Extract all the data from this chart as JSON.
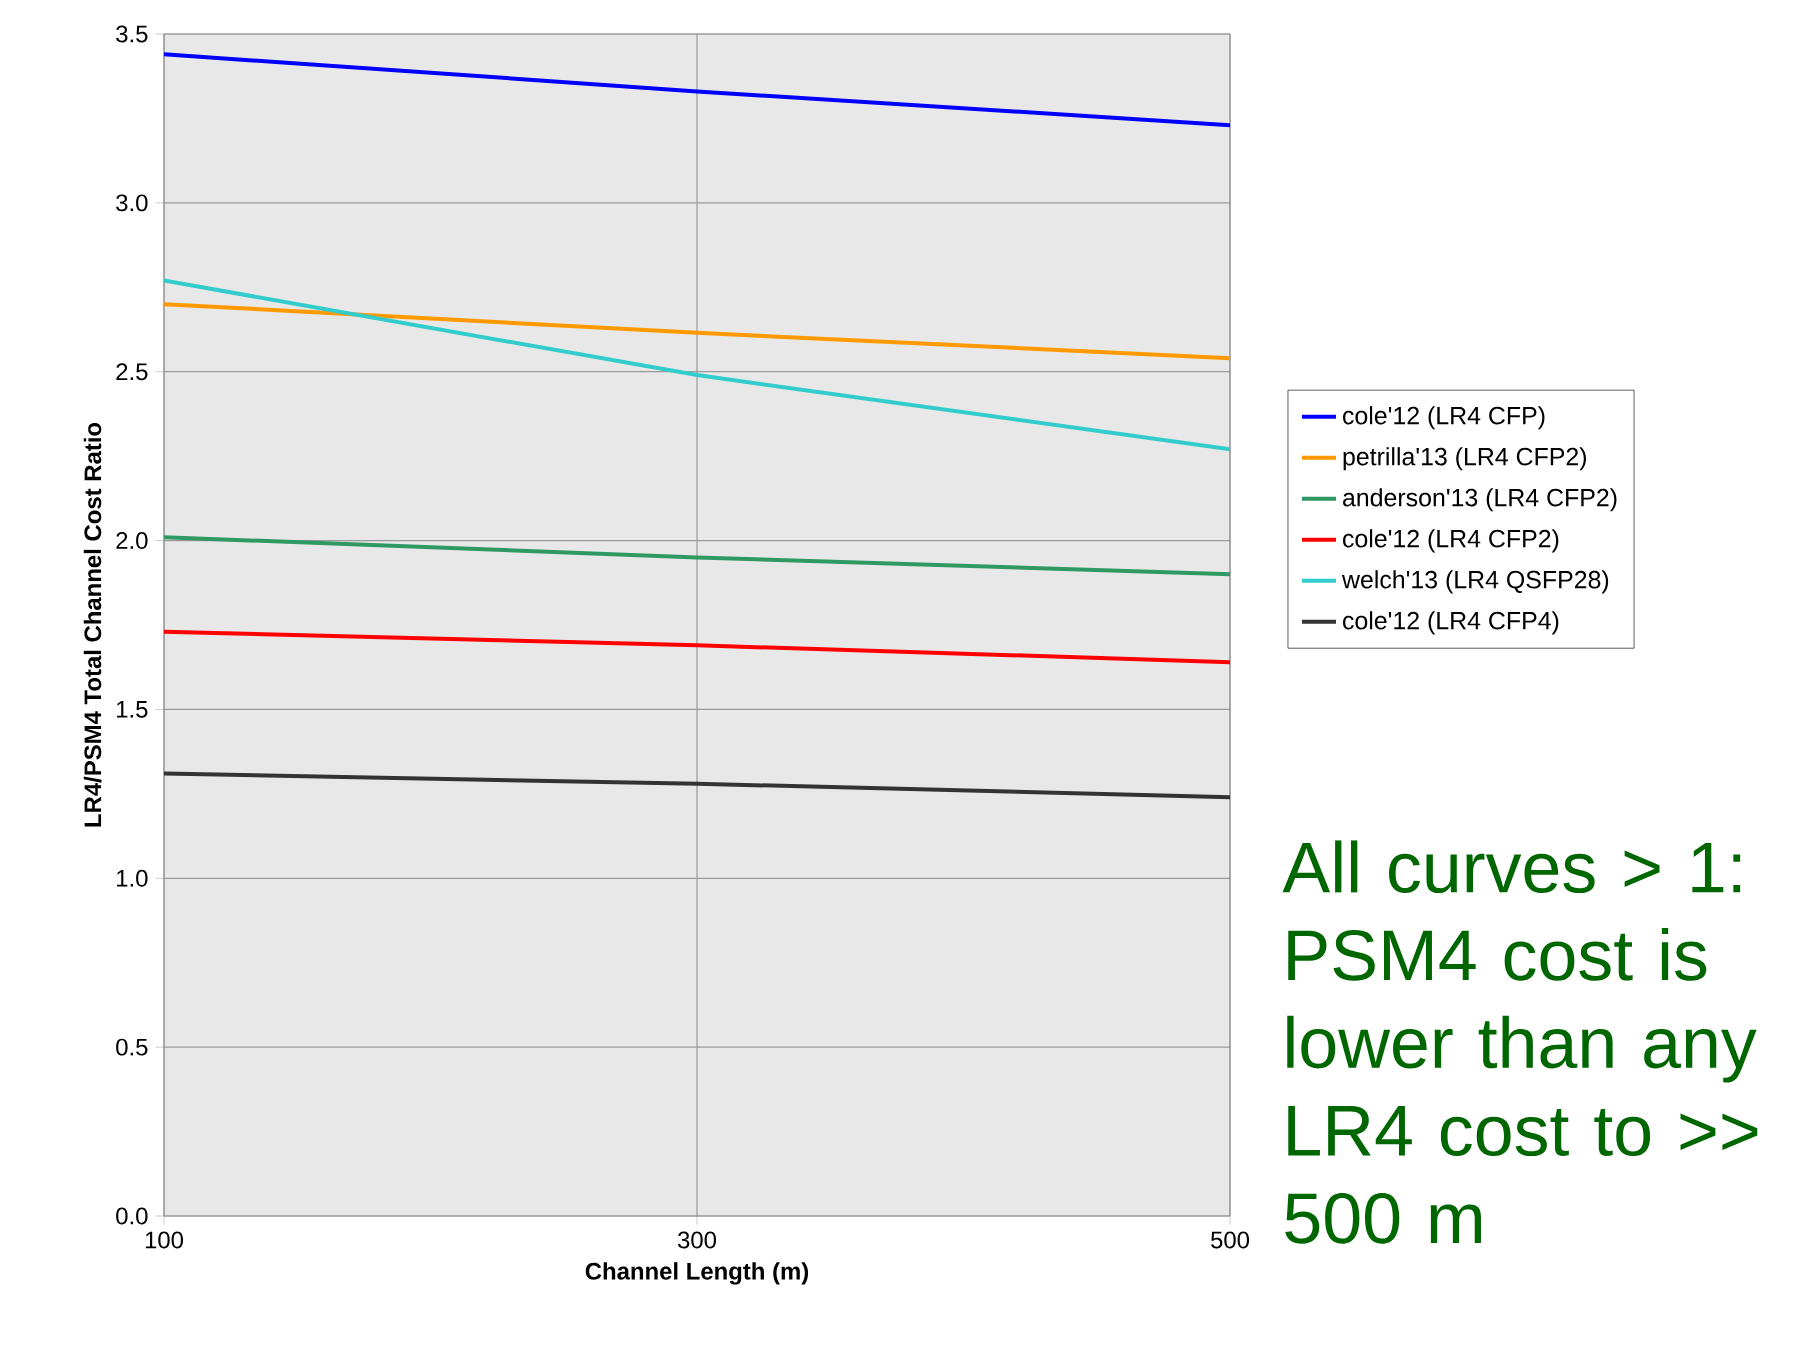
{
  "chart_data": {
    "type": "line",
    "xlabel": "Channel Length (m)",
    "ylabel": "LR4/PSM4 Total Channel Cost Ratio",
    "x": [
      100,
      300,
      500
    ],
    "series": [
      {
        "name": "cole'12 (LR4 CFP)",
        "color": "#0000ff",
        "values": [
          3.44,
          3.33,
          3.23
        ]
      },
      {
        "name": "petrilla'13 (LR4 CFP2)",
        "color": "#ff9900",
        "values": [
          2.7,
          2.615,
          2.54
        ]
      },
      {
        "name": "anderson'13 (LR4 CFP2)",
        "color": "#2e9963",
        "values": [
          2.01,
          1.95,
          1.9
        ]
      },
      {
        "name": "cole'12 (LR4 CFP2)",
        "color": "#ff0000",
        "values": [
          1.73,
          1.69,
          1.64
        ]
      },
      {
        "name": "welch'13 (LR4 QSFP28)",
        "color": "#33cccc",
        "values": [
          2.77,
          2.49,
          2.27
        ]
      },
      {
        "name": "cole'12 (LR4 CFP4)",
        "color": "#333333",
        "values": [
          1.31,
          1.28,
          1.24
        ]
      }
    ],
    "xlim": [
      100,
      500
    ],
    "ylim": [
      0,
      3.5
    ],
    "xticks": [
      100,
      300,
      500
    ],
    "yticks": [
      {
        "value": 0,
        "label": "0.0"
      },
      0.5,
      {
        "value": 1,
        "label": "1.0"
      },
      1.5,
      {
        "value": 2,
        "label": "2.0"
      },
      2.5,
      {
        "value": 3,
        "label": "3.0"
      },
      3.5
    ],
    "grid": true,
    "legend": "right",
    "marker": "none",
    "line_style": "solid",
    "annotations": [
      "All curves > 1: PSM4 cost is lower than any LR4 cost to >> 500 m"
    ]
  }
}
